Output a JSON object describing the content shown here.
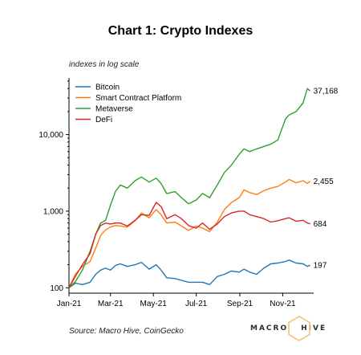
{
  "title": "Chart 1: Crypto Indexes",
  "note": "indexes in log scale",
  "source": "Source: Macro Hive, CoinGecko",
  "brand": {
    "text_left": "MACRO",
    "text_right": "HIVE",
    "hex_color": "#f4c27a"
  },
  "chart_data": {
    "type": "line",
    "y_scale": "log",
    "ylim": [
      85,
      55000
    ],
    "xlim": [
      "2021-01-01",
      "2021-12-15"
    ],
    "x_ticks": [
      {
        "label": "Jan-21",
        "date": "2021-01-01"
      },
      {
        "label": "Mar-21",
        "date": "2021-03-01"
      },
      {
        "label": "May-21",
        "date": "2021-05-01"
      },
      {
        "label": "Jul-21",
        "date": "2021-07-01"
      },
      {
        "label": "Sep-21",
        "date": "2021-09-01"
      },
      {
        "label": "Nov-21",
        "date": "2021-11-01"
      }
    ],
    "y_ticks": [
      {
        "label": "100",
        "value": 100
      },
      {
        "label": "1,000",
        "value": 1000
      },
      {
        "label": "10,000",
        "value": 10000
      }
    ],
    "legend_position": "top-left",
    "grid": false,
    "series": [
      {
        "name": "Bitcoin",
        "color": "#1f77b4",
        "end_label": "197",
        "points": [
          [
            "2021-01-01",
            100
          ],
          [
            "2021-01-10",
            115
          ],
          [
            "2021-01-20",
            110
          ],
          [
            "2021-01-31",
            118
          ],
          [
            "2021-02-08",
            150
          ],
          [
            "2021-02-15",
            170
          ],
          [
            "2021-02-22",
            180
          ],
          [
            "2021-03-01",
            170
          ],
          [
            "2021-03-08",
            195
          ],
          [
            "2021-03-15",
            205
          ],
          [
            "2021-03-25",
            190
          ],
          [
            "2021-04-05",
            200
          ],
          [
            "2021-04-14",
            215
          ],
          [
            "2021-04-25",
            175
          ],
          [
            "2021-05-05",
            200
          ],
          [
            "2021-05-12",
            170
          ],
          [
            "2021-05-20",
            135
          ],
          [
            "2021-06-01",
            132
          ],
          [
            "2021-06-10",
            125
          ],
          [
            "2021-06-20",
            118
          ],
          [
            "2021-07-01",
            118
          ],
          [
            "2021-07-10",
            118
          ],
          [
            "2021-07-20",
            110
          ],
          [
            "2021-07-31",
            140
          ],
          [
            "2021-08-10",
            150
          ],
          [
            "2021-08-20",
            165
          ],
          [
            "2021-08-31",
            160
          ],
          [
            "2021-09-07",
            175
          ],
          [
            "2021-09-15",
            160
          ],
          [
            "2021-09-25",
            150
          ],
          [
            "2021-10-05",
            180
          ],
          [
            "2021-10-15",
            205
          ],
          [
            "2021-10-25",
            210
          ],
          [
            "2021-11-05",
            220
          ],
          [
            "2021-11-10",
            230
          ],
          [
            "2021-11-20",
            210
          ],
          [
            "2021-11-30",
            205
          ],
          [
            "2021-12-06",
            190
          ],
          [
            "2021-12-10",
            197
          ]
        ]
      },
      {
        "name": "Smart Contract Platform",
        "color": "#ff7f0e",
        "end_label": "2,455",
        "points": [
          [
            "2021-01-01",
            100
          ],
          [
            "2021-01-10",
            150
          ],
          [
            "2021-01-20",
            190
          ],
          [
            "2021-01-31",
            220
          ],
          [
            "2021-02-08",
            330
          ],
          [
            "2021-02-15",
            480
          ],
          [
            "2021-02-22",
            570
          ],
          [
            "2021-03-01",
            620
          ],
          [
            "2021-03-08",
            650
          ],
          [
            "2021-03-15",
            640
          ],
          [
            "2021-03-25",
            620
          ],
          [
            "2021-04-05",
            750
          ],
          [
            "2021-04-14",
            950
          ],
          [
            "2021-04-25",
            820
          ],
          [
            "2021-05-05",
            1050
          ],
          [
            "2021-05-12",
            900
          ],
          [
            "2021-05-20",
            700
          ],
          [
            "2021-06-01",
            720
          ],
          [
            "2021-06-10",
            640
          ],
          [
            "2021-06-20",
            560
          ],
          [
            "2021-07-01",
            640
          ],
          [
            "2021-07-10",
            600
          ],
          [
            "2021-07-20",
            540
          ],
          [
            "2021-07-31",
            720
          ],
          [
            "2021-08-10",
            1050
          ],
          [
            "2021-08-20",
            1300
          ],
          [
            "2021-08-31",
            1500
          ],
          [
            "2021-09-07",
            1900
          ],
          [
            "2021-09-15",
            1750
          ],
          [
            "2021-09-25",
            1650
          ],
          [
            "2021-10-05",
            1850
          ],
          [
            "2021-10-15",
            2000
          ],
          [
            "2021-10-25",
            2100
          ],
          [
            "2021-11-05",
            2400
          ],
          [
            "2021-11-10",
            2600
          ],
          [
            "2021-11-20",
            2350
          ],
          [
            "2021-11-30",
            2500
          ],
          [
            "2021-12-06",
            2300
          ],
          [
            "2021-12-10",
            2455
          ]
        ]
      },
      {
        "name": "Metaverse",
        "color": "#2ca02c",
        "end_label": "37,168",
        "points": [
          [
            "2021-01-01",
            100
          ],
          [
            "2021-01-10",
            120
          ],
          [
            "2021-01-20",
            170
          ],
          [
            "2021-01-31",
            300
          ],
          [
            "2021-02-08",
            500
          ],
          [
            "2021-02-15",
            700
          ],
          [
            "2021-02-22",
            760
          ],
          [
            "2021-03-01",
            1200
          ],
          [
            "2021-03-08",
            1800
          ],
          [
            "2021-03-15",
            2200
          ],
          [
            "2021-03-25",
            2000
          ],
          [
            "2021-04-05",
            2500
          ],
          [
            "2021-04-14",
            2800
          ],
          [
            "2021-04-25",
            2400
          ],
          [
            "2021-05-05",
            2700
          ],
          [
            "2021-05-12",
            2300
          ],
          [
            "2021-05-20",
            1700
          ],
          [
            "2021-06-01",
            1800
          ],
          [
            "2021-06-10",
            1500
          ],
          [
            "2021-06-20",
            1250
          ],
          [
            "2021-07-01",
            1400
          ],
          [
            "2021-07-10",
            1700
          ],
          [
            "2021-07-20",
            1500
          ],
          [
            "2021-07-31",
            2200
          ],
          [
            "2021-08-10",
            3200
          ],
          [
            "2021-08-20",
            4000
          ],
          [
            "2021-08-31",
            5500
          ],
          [
            "2021-09-07",
            6500
          ],
          [
            "2021-09-15",
            6000
          ],
          [
            "2021-09-25",
            6500
          ],
          [
            "2021-10-05",
            7000
          ],
          [
            "2021-10-15",
            7500
          ],
          [
            "2021-10-25",
            8500
          ],
          [
            "2021-11-05",
            16000
          ],
          [
            "2021-11-10",
            18000
          ],
          [
            "2021-11-20",
            20000
          ],
          [
            "2021-11-30",
            26000
          ],
          [
            "2021-12-06",
            40000
          ],
          [
            "2021-12-10",
            37168
          ]
        ]
      },
      {
        "name": "DeFi",
        "color": "#d62728",
        "end_label": "684",
        "points": [
          [
            "2021-01-01",
            100
          ],
          [
            "2021-01-10",
            140
          ],
          [
            "2021-01-20",
            200
          ],
          [
            "2021-01-31",
            280
          ],
          [
            "2021-02-08",
            500
          ],
          [
            "2021-02-15",
            650
          ],
          [
            "2021-02-22",
            700
          ],
          [
            "2021-03-01",
            680
          ],
          [
            "2021-03-08",
            700
          ],
          [
            "2021-03-15",
            700
          ],
          [
            "2021-03-25",
            640
          ],
          [
            "2021-04-05",
            760
          ],
          [
            "2021-04-14",
            900
          ],
          [
            "2021-04-25",
            880
          ],
          [
            "2021-05-05",
            1300
          ],
          [
            "2021-05-12",
            1150
          ],
          [
            "2021-05-20",
            800
          ],
          [
            "2021-06-01",
            900
          ],
          [
            "2021-06-10",
            800
          ],
          [
            "2021-06-20",
            650
          ],
          [
            "2021-07-01",
            600
          ],
          [
            "2021-07-10",
            700
          ],
          [
            "2021-07-20",
            580
          ],
          [
            "2021-07-31",
            680
          ],
          [
            "2021-08-10",
            850
          ],
          [
            "2021-08-20",
            950
          ],
          [
            "2021-08-31",
            1000
          ],
          [
            "2021-09-07",
            1000
          ],
          [
            "2021-09-15",
            900
          ],
          [
            "2021-09-25",
            850
          ],
          [
            "2021-10-05",
            800
          ],
          [
            "2021-10-15",
            720
          ],
          [
            "2021-10-25",
            750
          ],
          [
            "2021-11-05",
            800
          ],
          [
            "2021-11-10",
            820
          ],
          [
            "2021-11-20",
            740
          ],
          [
            "2021-11-30",
            760
          ],
          [
            "2021-12-06",
            700
          ],
          [
            "2021-12-10",
            684
          ]
        ]
      }
    ]
  }
}
